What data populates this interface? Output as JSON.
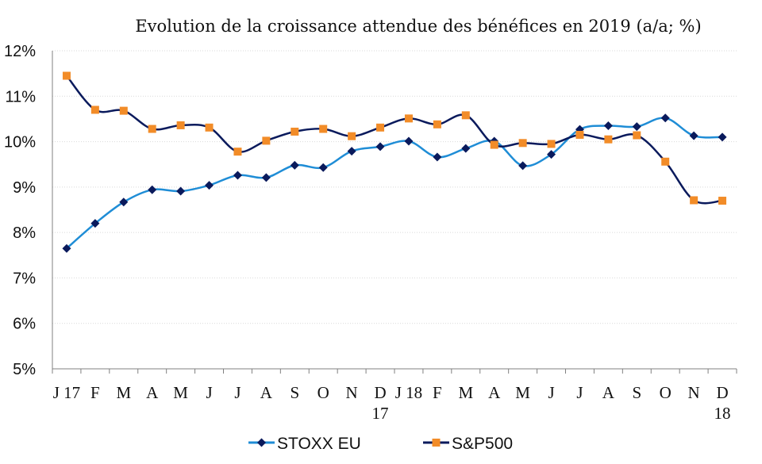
{
  "chart_data": {
    "type": "line",
    "title": "Evolution de la croissance attendue des bénéfices en 2019 (a/a; %)",
    "xlabel": "",
    "ylabel": "",
    "ylim": [
      5,
      12
    ],
    "yticks": [
      "5%",
      "6%",
      "7%",
      "8%",
      "9%",
      "10%",
      "11%",
      "12%"
    ],
    "categories": [
      "J 17",
      "F",
      "M",
      "A",
      "M",
      "J",
      "J",
      "A",
      "S",
      "O",
      "N",
      "D 17",
      "J 18",
      "F",
      "M",
      "A",
      "M",
      "J",
      "J",
      "A",
      "S",
      "O",
      "N",
      "D 18"
    ],
    "x_tick_lines": [
      [
        "J 17"
      ],
      [
        "F"
      ],
      [
        "M"
      ],
      [
        "A"
      ],
      [
        "M"
      ],
      [
        "J"
      ],
      [
        "J"
      ],
      [
        "A"
      ],
      [
        "S"
      ],
      [
        "O"
      ],
      [
        "N"
      ],
      [
        "D",
        "17"
      ],
      [
        "J 18"
      ],
      [
        "F"
      ],
      [
        "M"
      ],
      [
        "A"
      ],
      [
        "M"
      ],
      [
        "J"
      ],
      [
        "J"
      ],
      [
        "A"
      ],
      [
        "S"
      ],
      [
        "O"
      ],
      [
        "N"
      ],
      [
        "D",
        "18"
      ]
    ],
    "series": [
      {
        "name": "STOXX EU",
        "color": "#1f8dd6",
        "marker_color": "#0a1a5c",
        "marker": "diamond",
        "values": [
          7.65,
          8.2,
          8.67,
          8.94,
          8.91,
          9.04,
          9.26,
          9.21,
          9.48,
          9.43,
          9.79,
          9.89,
          10.01,
          9.66,
          9.85,
          10.01,
          9.47,
          9.72,
          10.27,
          10.35,
          10.33,
          10.52,
          10.13,
          10.1
        ]
      },
      {
        "name": "S&P500",
        "color": "#0a1a5c",
        "marker_color": "#f28c28",
        "marker": "square",
        "values": [
          11.45,
          10.7,
          10.68,
          10.28,
          10.36,
          10.31,
          9.78,
          10.02,
          10.22,
          10.28,
          10.12,
          10.31,
          10.51,
          10.38,
          10.58,
          9.93,
          9.97,
          9.95,
          10.15,
          10.05,
          10.14,
          9.56,
          8.71,
          8.7
        ]
      }
    ],
    "grid": true,
    "legend": "bottom"
  }
}
